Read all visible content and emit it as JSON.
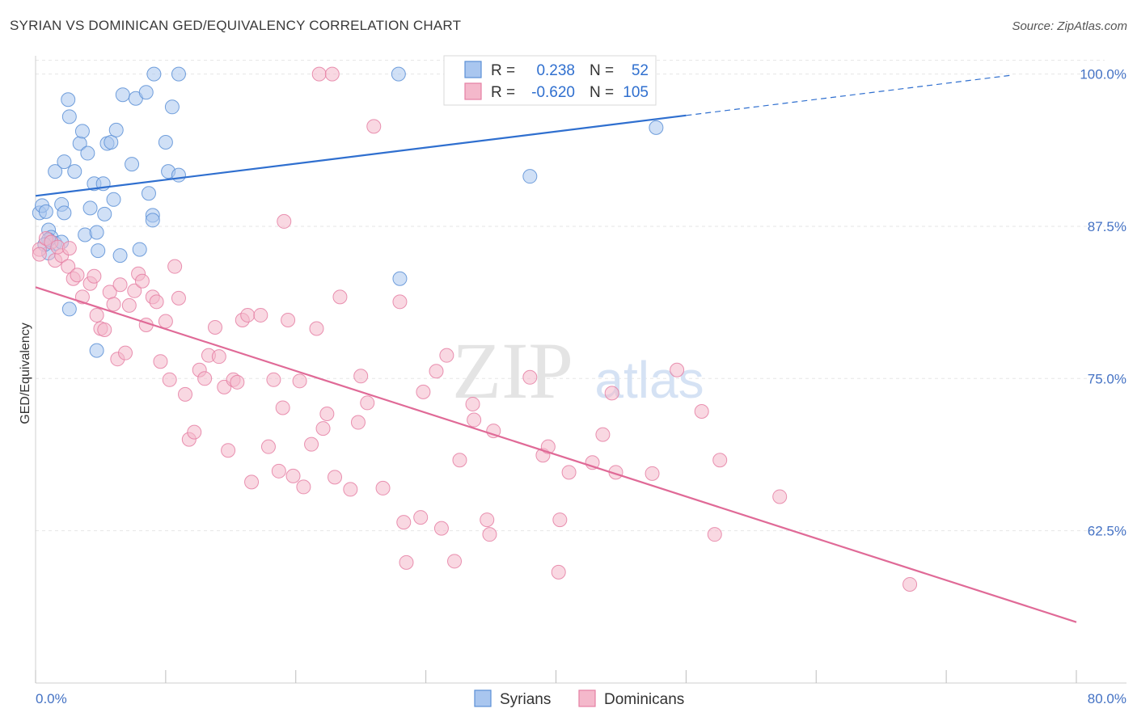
{
  "title": "SYRIAN VS DOMINICAN GED/EQUIVALENCY CORRELATION CHART",
  "source": "Source: ZipAtlas.com",
  "watermark": {
    "zip": "ZIP",
    "atlas": "atlas"
  },
  "colors": {
    "syrians_fill": "#a9c6ef",
    "syrians_stroke": "#5b8fd6",
    "syrians_line": "#2f6fcf",
    "dominicans_fill": "#f4b8cb",
    "dominicans_stroke": "#e57fa3",
    "dominicans_line": "#e06a97",
    "tick_label": "#4472c4",
    "grid": "#e6e6e6"
  },
  "legend": {
    "rows": [
      {
        "r_label": "R =",
        "r_value": "0.238",
        "n_label": "N =",
        "n_value": "52"
      },
      {
        "r_label": "R =",
        "r_value": "-0.620",
        "n_label": "N =",
        "n_value": "105"
      }
    ]
  },
  "chart_data": {
    "type": "scatter",
    "xlabel": "",
    "ylabel": "GED/Equivalency",
    "xlim": [
      0,
      80
    ],
    "ylim": [
      50,
      101.5
    ],
    "x_tick_labels": [
      "0.0%",
      "80.0%"
    ],
    "y_ticks": [
      62.5,
      75.0,
      87.5,
      100.0
    ],
    "y_tick_labels": [
      "62.5%",
      "75.0%",
      "87.5%",
      "100.0%"
    ],
    "grid": "horizontal dashed",
    "legend_placement": "bottom",
    "series": [
      {
        "name": "Syrians",
        "color": "#5b8fd6",
        "trend": {
          "x0": 0,
          "y0": 90.0,
          "x1": 50,
          "y1": 96.6,
          "dashed_to_x": 75
        },
        "points": [
          [
            0.3,
            88.6
          ],
          [
            0.5,
            89.2
          ],
          [
            0.8,
            88.7
          ],
          [
            1.0,
            87.2
          ],
          [
            1.2,
            86.6
          ],
          [
            1.5,
            86.1
          ],
          [
            1.0,
            85.3
          ],
          [
            1.5,
            92.0
          ],
          [
            2.0,
            89.3
          ],
          [
            2.2,
            92.8
          ],
          [
            2.5,
            97.9
          ],
          [
            2.6,
            96.5
          ],
          [
            3.0,
            92.0
          ],
          [
            3.4,
            94.3
          ],
          [
            3.6,
            95.3
          ],
          [
            4.0,
            93.5
          ],
          [
            2.2,
            88.6
          ],
          [
            3.8,
            86.8
          ],
          [
            4.2,
            89.0
          ],
          [
            4.5,
            91.0
          ],
          [
            4.7,
            87.0
          ],
          [
            4.8,
            85.5
          ],
          [
            5.2,
            91.0
          ],
          [
            5.3,
            88.5
          ],
          [
            5.5,
            94.3
          ],
          [
            5.8,
            94.4
          ],
          [
            6.0,
            89.7
          ],
          [
            6.2,
            95.4
          ],
          [
            6.5,
            85.1
          ],
          [
            6.7,
            98.3
          ],
          [
            7.4,
            92.6
          ],
          [
            7.7,
            98.0
          ],
          [
            8.0,
            85.6
          ],
          [
            8.5,
            98.5
          ],
          [
            8.7,
            90.2
          ],
          [
            9.0,
            88.4
          ],
          [
            9.0,
            88.0
          ],
          [
            10.0,
            94.4
          ],
          [
            10.2,
            92.0
          ],
          [
            10.5,
            97.3
          ],
          [
            11.0,
            91.7
          ],
          [
            9.1,
            100.0
          ],
          [
            11.0,
            100.0
          ],
          [
            27.9,
            100.0
          ],
          [
            2.6,
            80.7
          ],
          [
            4.7,
            77.3
          ],
          [
            28.0,
            83.2
          ],
          [
            38.0,
            91.6
          ],
          [
            47.7,
            95.6
          ],
          [
            1.0,
            86.4
          ],
          [
            0.7,
            86.0
          ],
          [
            2.0,
            86.2
          ]
        ]
      },
      {
        "name": "Dominicans",
        "color": "#e57fa3",
        "trend": {
          "x0": 0,
          "y0": 82.5,
          "x1": 80,
          "y1": 55.0
        },
        "points": [
          [
            0.3,
            85.6
          ],
          [
            0.8,
            86.5
          ],
          [
            1.2,
            86.2
          ],
          [
            1.5,
            84.7
          ],
          [
            2.0,
            85.1
          ],
          [
            2.5,
            84.2
          ],
          [
            2.9,
            83.2
          ],
          [
            3.2,
            83.5
          ],
          [
            3.6,
            81.7
          ],
          [
            4.2,
            82.8
          ],
          [
            4.5,
            83.4
          ],
          [
            4.7,
            80.2
          ],
          [
            5.0,
            79.1
          ],
          [
            5.3,
            79.0
          ],
          [
            5.7,
            82.1
          ],
          [
            6.0,
            81.1
          ],
          [
            6.3,
            76.6
          ],
          [
            6.5,
            82.7
          ],
          [
            6.9,
            77.1
          ],
          [
            7.2,
            81.0
          ],
          [
            7.6,
            82.2
          ],
          [
            7.9,
            83.6
          ],
          [
            8.2,
            83.0
          ],
          [
            8.5,
            79.4
          ],
          [
            9.0,
            81.7
          ],
          [
            9.3,
            81.3
          ],
          [
            9.6,
            76.4
          ],
          [
            10.0,
            79.7
          ],
          [
            10.3,
            74.9
          ],
          [
            10.7,
            84.2
          ],
          [
            11.0,
            81.6
          ],
          [
            11.5,
            73.7
          ],
          [
            11.8,
            70.0
          ],
          [
            12.2,
            70.6
          ],
          [
            12.6,
            75.7
          ],
          [
            13.0,
            75.0
          ],
          [
            13.3,
            76.9
          ],
          [
            13.8,
            79.2
          ],
          [
            14.1,
            76.8
          ],
          [
            14.5,
            74.3
          ],
          [
            14.8,
            69.1
          ],
          [
            15.2,
            74.9
          ],
          [
            15.5,
            74.7
          ],
          [
            15.9,
            79.8
          ],
          [
            16.3,
            80.2
          ],
          [
            16.6,
            66.5
          ],
          [
            17.3,
            80.2
          ],
          [
            17.9,
            69.4
          ],
          [
            18.3,
            74.9
          ],
          [
            18.7,
            67.4
          ],
          [
            19.0,
            72.6
          ],
          [
            19.4,
            79.8
          ],
          [
            19.8,
            67.0
          ],
          [
            20.3,
            74.8
          ],
          [
            20.6,
            66.1
          ],
          [
            21.2,
            69.6
          ],
          [
            21.6,
            79.1
          ],
          [
            22.1,
            70.9
          ],
          [
            22.4,
            72.1
          ],
          [
            23.0,
            66.9
          ],
          [
            23.4,
            81.7
          ],
          [
            24.2,
            65.9
          ],
          [
            24.8,
            71.4
          ],
          [
            25.0,
            75.2
          ],
          [
            25.5,
            73.0
          ],
          [
            26.0,
            95.7
          ],
          [
            26.7,
            66.0
          ],
          [
            28.0,
            81.3
          ],
          [
            28.3,
            63.2
          ],
          [
            28.5,
            59.9
          ],
          [
            29.6,
            63.6
          ],
          [
            29.8,
            73.9
          ],
          [
            30.8,
            75.6
          ],
          [
            31.2,
            62.7
          ],
          [
            31.6,
            76.9
          ],
          [
            32.2,
            60.0
          ],
          [
            32.6,
            68.3
          ],
          [
            33.6,
            72.9
          ],
          [
            33.7,
            71.6
          ],
          [
            34.7,
            63.4
          ],
          [
            34.9,
            62.2
          ],
          [
            35.2,
            70.7
          ],
          [
            38.0,
            75.1
          ],
          [
            39.0,
            68.7
          ],
          [
            39.4,
            69.4
          ],
          [
            40.2,
            59.1
          ],
          [
            40.3,
            63.4
          ],
          [
            41.0,
            67.3
          ],
          [
            42.8,
            68.1
          ],
          [
            43.6,
            70.4
          ],
          [
            44.3,
            73.8
          ],
          [
            44.6,
            67.3
          ],
          [
            47.4,
            67.2
          ],
          [
            49.3,
            75.7
          ],
          [
            51.2,
            72.3
          ],
          [
            52.2,
            62.2
          ],
          [
            52.6,
            68.3
          ],
          [
            57.2,
            65.3
          ],
          [
            67.2,
            58.1
          ],
          [
            21.8,
            100.0
          ],
          [
            22.8,
            100.0
          ],
          [
            19.1,
            87.9
          ],
          [
            0.3,
            85.2
          ],
          [
            1.7,
            85.8
          ],
          [
            2.6,
            85.7
          ]
        ]
      }
    ]
  },
  "bottom_legend": [
    {
      "label": "Syrians"
    },
    {
      "label": "Dominicans"
    }
  ]
}
